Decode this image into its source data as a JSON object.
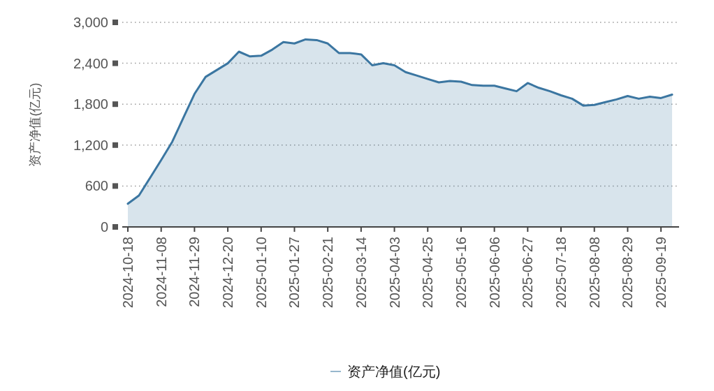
{
  "chart_data": {
    "type": "area",
    "ylabel": "资产净值(亿元)",
    "categories": [
      "2024-10-18",
      null,
      null,
      "2024-11-08",
      null,
      null,
      "2024-11-29",
      null,
      null,
      "2024-12-20",
      null,
      null,
      "2025-01-10",
      null,
      null,
      "2025-01-27",
      null,
      null,
      "2025-02-21",
      null,
      null,
      "2025-03-14",
      null,
      null,
      "2025-04-03",
      null,
      null,
      "2025-04-25",
      null,
      null,
      "2025-05-16",
      null,
      null,
      "2025-06-06",
      null,
      null,
      "2025-06-27",
      null,
      null,
      "2025-07-18",
      null,
      null,
      "2025-08-08",
      null,
      null,
      "2025-08-29",
      null,
      null,
      "2025-09-19",
      null
    ],
    "series": [
      {
        "name": "资产净值(亿元)",
        "color": "#3b76a1",
        "values": [
          340,
          460,
          720,
          980,
          1250,
          1600,
          1950,
          2200,
          2300,
          2400,
          2570,
          2500,
          2510,
          2600,
          2710,
          2690,
          2750,
          2740,
          2690,
          2550,
          2550,
          2530,
          2370,
          2400,
          2370,
          2270,
          2220,
          2170,
          2120,
          2140,
          2130,
          2080,
          2070,
          2070,
          2030,
          1990,
          2110,
          2040,
          1990,
          1930,
          1880,
          1780,
          1790,
          1830,
          1870,
          1920,
          1880,
          1910,
          1890,
          1940
        ]
      }
    ],
    "ylim": [
      0,
      3000
    ],
    "yticks": [
      {
        "value": 0,
        "label": "0"
      },
      {
        "value": 600,
        "label": "600"
      },
      {
        "value": 1200,
        "label": "1,200"
      },
      {
        "value": 1800,
        "label": "1,800"
      },
      {
        "value": 2400,
        "label": "2,400"
      },
      {
        "value": 3000,
        "label": "3,000"
      }
    ],
    "grid": "y",
    "legend": "bottom"
  }
}
